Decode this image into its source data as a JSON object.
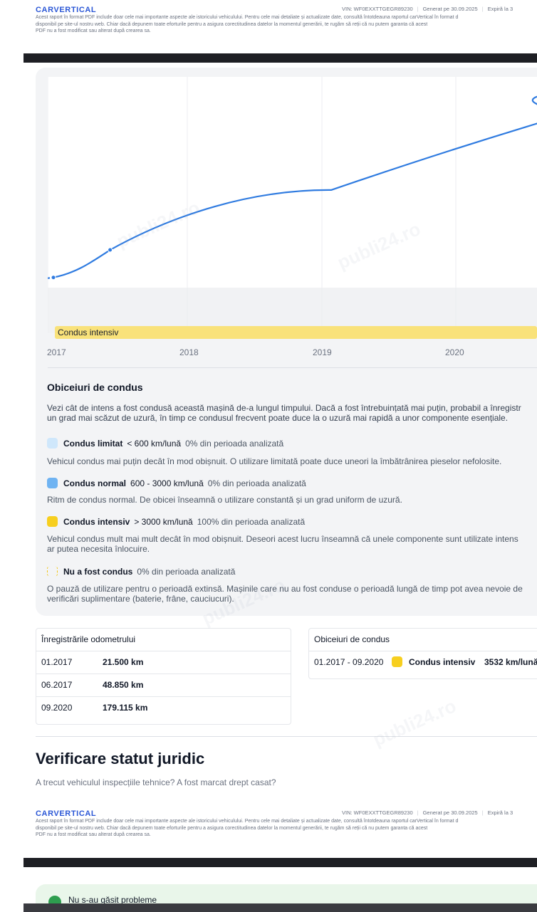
{
  "header": {
    "logo": "CARVERTICAL",
    "vin": "VIN:  WF0EXXTTGEGR89230",
    "generated": "Generat pe  30.09.2025",
    "expires": "Expiră la  3",
    "disclaimer_1": "Acest raport în format PDF include doar cele mai importante aspecte ale istoricului vehiculului. Pentru cele mai detaliate și actualizate date, consultă întotdeauna raportul carVertical în format d",
    "disclaimer_2": "disponibil pe site-ul nostru web. Chiar dacă depunem toate eforturile pentru a asigura corectitudinea datelor la momentul generării, te rugăm să reții că nu putem garanta că acest",
    "disclaimer_3": "PDF nu a fost modificat sau alterat după crearea sa."
  },
  "chart": {
    "band_label": "Condus intensiv",
    "years": [
      "2017",
      "2018",
      "2019",
      "2020"
    ]
  },
  "chart_data": {
    "type": "line",
    "x": [
      "01.2017",
      "06.2017",
      "09.2020"
    ],
    "values": [
      21500,
      48850,
      179115
    ],
    "unit": "km",
    "xlabel": "",
    "ylabel": "",
    "grid": true
  },
  "habits": {
    "title": "Obiceiuri de condus",
    "intro_1": "Vezi cât de intens a fost condusă această mașină de-a lungul timpului. Dacă a fost întrebuințată mai puțin, probabil a înregistr",
    "intro_2": "un grad mai scăzut de uzură, în timp ce condusul frecvent poate duce la o uzură mai rapidă a unor componente esențiale.",
    "items": [
      {
        "name": "Condus limitat",
        "range": "< 600 km/lună",
        "pct": "0% din perioada analizată",
        "desc_1": "Vehicul condus mai puțin decât în mod obișnuit. O utilizare limitată poate duce uneori la îmbătrânirea pieselor nefolosite.",
        "desc_2": "",
        "color": "#cfe7fb"
      },
      {
        "name": "Condus normal",
        "range": "600 - 3000 km/lună",
        "pct": "0% din perioada analizată",
        "desc_1": "Ritm de condus normal. De obicei înseamnă o utilizare constantă și un grad uniform de uzură.",
        "desc_2": "",
        "color": "#6fb3f2"
      },
      {
        "name": "Condus intensiv",
        "range": "> 3000 km/lună",
        "pct": "100% din perioada analizată",
        "desc_1": "Vehicul condus mult mai mult decât în mod obișnuit. Deseori acest lucru înseamnă că unele componente sunt utilizate intens",
        "desc_2": "ar putea necesita înlocuire.",
        "color": "#f7cf1f"
      },
      {
        "name": "Nu a fost condus",
        "range": "",
        "pct": "0% din perioada analizată",
        "desc_1": "O pauză de utilizare pentru o perioadă extinsă. Mașinile care nu au fost conduse o perioadă lungă de timp pot avea nevoie de",
        "desc_2": "verificări suplimentare (baterie, frâne, cauciucuri).",
        "color": "dashed"
      }
    ]
  },
  "odometer": {
    "title": "Înregistrările odometrului",
    "rows": [
      {
        "date": "01.2017",
        "km": "21.500 km"
      },
      {
        "date": "06.2017",
        "km": "48.850 km"
      },
      {
        "date": "09.2020",
        "km": "179.115 km"
      }
    ]
  },
  "habits_table": {
    "title": "Obiceiuri de condus",
    "period": "01.2017 - 09.2020",
    "label": "Condus intensiv",
    "value": "3532 km/lună"
  },
  "legal": {
    "title": "Verificare statut juridic",
    "subtitle": "A trecut vehiculul inspecțiile tehnice? A fost marcat drept casat?"
  },
  "status": {
    "text": "Nu s-au găsit probleme"
  }
}
